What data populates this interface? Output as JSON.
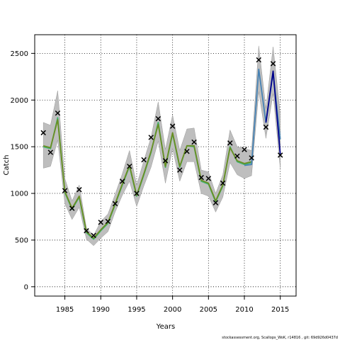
{
  "chart_data": {
    "type": "line",
    "xlabel": "Years",
    "ylabel": "Catch",
    "xlim": [
      1980.8,
      2017.2
    ],
    "ylim": [
      -100,
      2700
    ],
    "x_ticks": [
      1985,
      1990,
      1995,
      2000,
      2005,
      2010,
      2015
    ],
    "y_ticks": [
      0,
      500,
      1000,
      1500,
      2000,
      2500
    ],
    "grid": true,
    "footer": "stockassessment.org, Scallops_WoK, r14816 , git: 69d926d0437d",
    "band_color": "#bebebe",
    "years": [
      1982,
      1983,
      1984,
      1985,
      1986,
      1987,
      1988,
      1989,
      1990,
      1991,
      1992,
      1993,
      1994,
      1995,
      1996,
      1997,
      1998,
      1999,
      2000,
      2001,
      2002,
      2003,
      2004,
      2005,
      2006,
      2007,
      2008,
      2009,
      2010,
      2011,
      2012,
      2013,
      2014,
      2015
    ],
    "band_upper": [
      1760,
      1730,
      2100,
      1160,
      920,
      1090,
      630,
      550,
      700,
      780,
      990,
      1210,
      1460,
      1090,
      1350,
      1600,
      1980,
      1470,
      1840,
      1460,
      1690,
      1700,
      1250,
      1230,
      1000,
      1200,
      1680,
      1500,
      1480,
      1460,
      2580,
      1910,
      2570,
      1850
    ],
    "band_lower": [
      1270,
      1290,
      1570,
      890,
      720,
      850,
      510,
      440,
      520,
      590,
      800,
      980,
      1130,
      860,
      1080,
      1280,
      1560,
      1110,
      1480,
      1130,
      1340,
      1340,
      1000,
      970,
      800,
      960,
      1330,
      1200,
      1160,
      1190,
      2090,
      1590,
      2070,
      1270
    ],
    "series": [
      {
        "color": "#3cb371",
        "values": [
          1500,
          1480,
          1810,
          1010,
          830,
          960,
          580,
          510,
          600,
          680,
          880,
          1090,
          1290,
          970,
          1200,
          1440,
          1760,
          1280,
          1640,
          1280,
          1510,
          1500,
          1130,
          1100,
          910,
          1080,
          1500,
          1340,
          1310,
          1330,
          null,
          null,
          null,
          null
        ]
      },
      {
        "color": "#6a8e23",
        "values": [
          1510,
          1490,
          1790,
          1020,
          840,
          970,
          590,
          520,
          610,
          690,
          890,
          1100,
          1300,
          980,
          1210,
          1450,
          1740,
          1290,
          1650,
          1290,
          1510,
          1510,
          1140,
          1110,
          920,
          1090,
          1490,
          1350,
          1320,
          1340,
          null,
          null,
          null,
          null
        ]
      },
      {
        "color": "#4682b4",
        "values": [
          null,
          null,
          null,
          null,
          null,
          null,
          null,
          null,
          null,
          null,
          null,
          null,
          null,
          null,
          null,
          null,
          null,
          null,
          null,
          null,
          null,
          null,
          null,
          null,
          null,
          null,
          null,
          null,
          1300,
          1310,
          2330,
          1760,
          2290,
          1580
        ]
      },
      {
        "color": "#00008b",
        "values": [
          null,
          null,
          null,
          null,
          null,
          null,
          null,
          null,
          null,
          null,
          null,
          null,
          null,
          null,
          null,
          null,
          null,
          null,
          null,
          null,
          null,
          null,
          null,
          null,
          null,
          null,
          null,
          null,
          null,
          null,
          null,
          1760,
          2310,
          1420
        ]
      }
    ],
    "observed": {
      "marker": "x",
      "values": [
        1650,
        1440,
        1860,
        1030,
        840,
        1040,
        600,
        550,
        690,
        700,
        890,
        1130,
        1290,
        1000,
        1360,
        1600,
        1800,
        1350,
        1720,
        1250,
        1450,
        1550,
        1170,
        1160,
        900,
        1110,
        1540,
        1400,
        1470,
        1380,
        2430,
        1710,
        2390,
        1410
      ]
    }
  }
}
